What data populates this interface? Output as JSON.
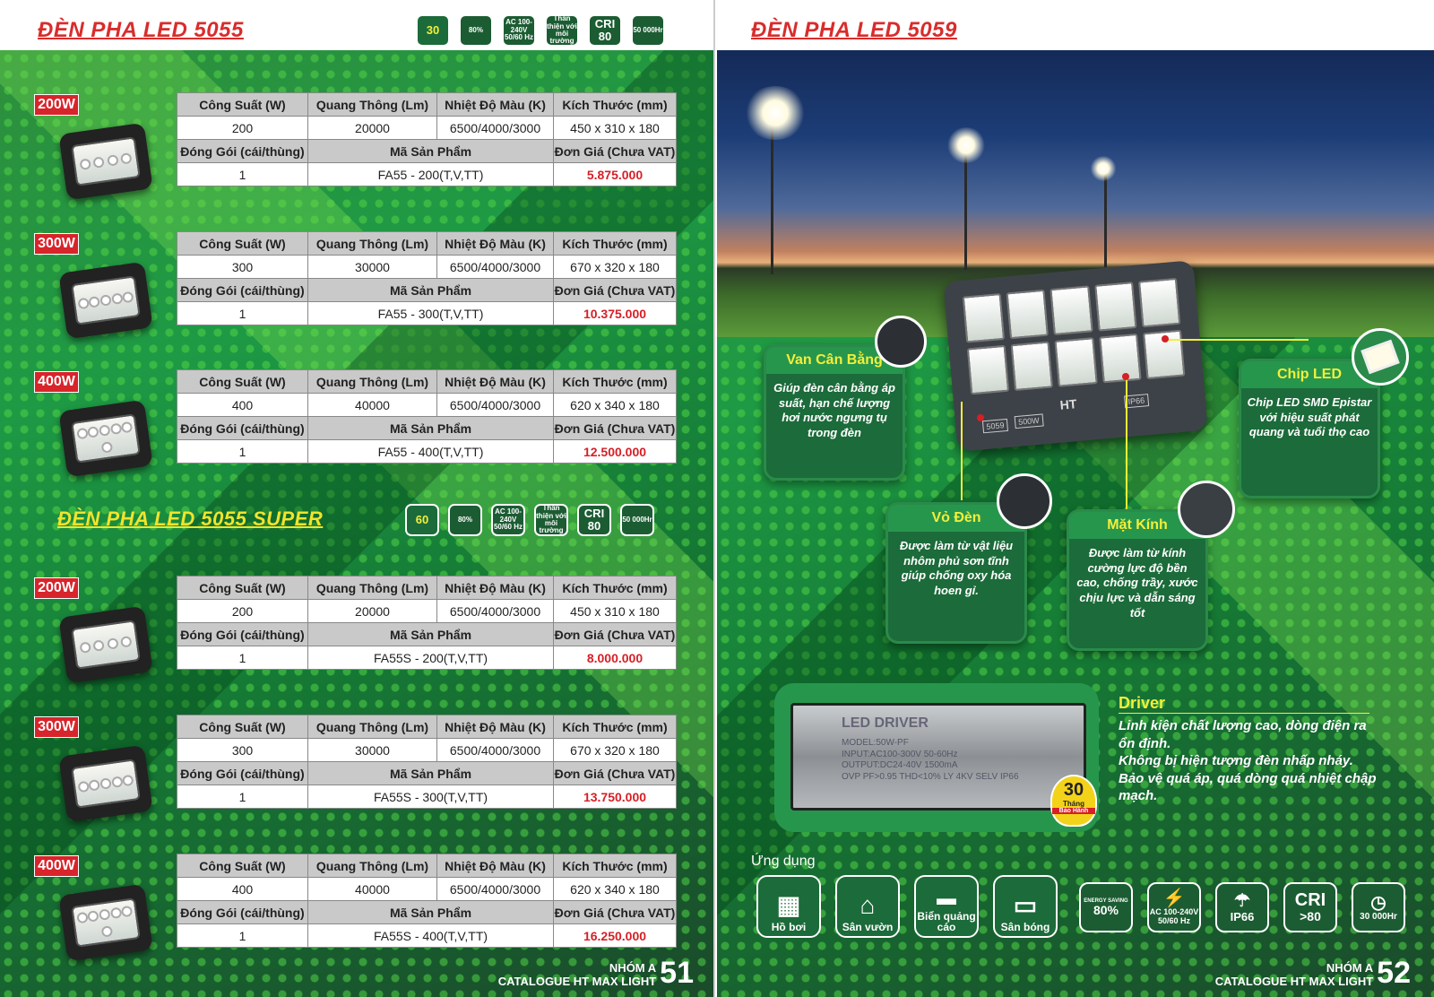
{
  "left_page": {
    "title": "ĐÈN PHA LED 5055",
    "badges": [
      {
        "icon": "warranty-30-icon",
        "label": "30"
      },
      {
        "icon": "energy-saving-icon",
        "label": "80%"
      },
      {
        "icon": "voltage-icon",
        "label": "AC 100-240V 50/60 Hz"
      },
      {
        "icon": "eco-friendly-icon",
        "label": "Thân thiện với môi trường"
      },
      {
        "icon": "cri-icon",
        "label": "CRI 80"
      },
      {
        "icon": "lifespan-icon",
        "label": "50 000Hr"
      }
    ],
    "super_title": "ĐÈN PHA LED 5055 SUPER",
    "super_badges": [
      {
        "icon": "warranty-60-icon",
        "label": "60"
      },
      {
        "icon": "energy-saving-icon",
        "label": "80%"
      },
      {
        "icon": "voltage-icon",
        "label": "AC 100-240V 50/60 Hz"
      },
      {
        "icon": "eco-friendly-icon",
        "label": "Thân thiện với môi trường"
      },
      {
        "icon": "cri-icon",
        "label": "CRI 80"
      },
      {
        "icon": "lifespan-icon",
        "label": "50 000Hr"
      }
    ],
    "headers": {
      "power": "Công Suất (W)",
      "lumen": "Quang Thông (Lm)",
      "temp": "Nhiệt Độ Màu (K)",
      "size": "Kích Thước (mm)",
      "pack": "Đóng Gói (cái/thùng)",
      "code": "Mã Sản Phẩm",
      "price": "Đơn Giá (Chưa VAT)"
    },
    "products": [
      {
        "watt": "200W",
        "power": "200",
        "lumen": "20000",
        "temp": "6500/4000/3000",
        "size": "450 x 310 x 180",
        "pack": "1",
        "code": "FA55 - 200(T,V,TT)",
        "price": "5.875.000"
      },
      {
        "watt": "300W",
        "power": "300",
        "lumen": "30000",
        "temp": "6500/4000/3000",
        "size": "670 x 320 x 180",
        "pack": "1",
        "code": "FA55 - 300(T,V,TT)",
        "price": "10.375.000"
      },
      {
        "watt": "400W",
        "power": "400",
        "lumen": "40000",
        "temp": "6500/4000/3000",
        "size": "620 x 340 x 180",
        "pack": "1",
        "code": "FA55 - 400(T,V,TT)",
        "price": "12.500.000"
      },
      {
        "watt": "200W",
        "power": "200",
        "lumen": "20000",
        "temp": "6500/4000/3000",
        "size": "450 x 310 x 180",
        "pack": "1",
        "code": "FA55S - 200(T,V,TT)",
        "price": "8.000.000"
      },
      {
        "watt": "300W",
        "power": "300",
        "lumen": "30000",
        "temp": "6500/4000/3000",
        "size": "670 x 320 x 180",
        "pack": "1",
        "code": "FA55S - 300(T,V,TT)",
        "price": "13.750.000"
      },
      {
        "watt": "400W",
        "power": "400",
        "lumen": "40000",
        "temp": "6500/4000/3000",
        "size": "620 x 340 x 180",
        "pack": "1",
        "code": "FA55S - 400(T,V,TT)",
        "price": "16.250.000"
      }
    ],
    "footer": {
      "group": "NHÓM A",
      "catalogue": "CATALOGUE HT MAX LIGHT",
      "page": "51"
    }
  },
  "right_page": {
    "title": "ĐÈN PHA LED 5059",
    "callouts": {
      "valve": {
        "title": "Van Cân Bằng",
        "text": "Giúp đèn cân bằng áp suất, hạn chế lượng hơi nước ngưng tụ trong đèn"
      },
      "chip": {
        "title": "Chip LED",
        "text": "Chip LED SMD Epistar với hiệu suất phát quang và tuổi thọ cao"
      },
      "shell": {
        "title": "Vỏ Đèn",
        "text": "Được làm từ vật liệu nhôm phủ sơn tĩnh giúp chống oxy hóa hoen gỉ."
      },
      "glass": {
        "title": "Mặt Kính",
        "text": "Được làm từ kính cường lực độ bền cao, chống trầy, xước chịu lực và dẫn sáng tốt"
      }
    },
    "hero_labels": {
      "brand": "HT",
      "model": "5059",
      "watt": "500W",
      "ip": "IP66"
    },
    "driver": {
      "title": "Driver",
      "lines": [
        "Linh kiện chất lượng cao, dòng điện ra ổn định.",
        "Không bị hiện tượng đèn nhấp nháy.",
        "Bảo vệ quá áp, quá dòng quá nhiệt chập mạch."
      ],
      "label": "LED DRIVER",
      "model": "MODEL:50W-PF",
      "input": "INPUT:AC100-300V 50-60Hz",
      "output": "OUTPUT:DC24-40V 1500mA",
      "ovp": "OVP  PF>0.95  THD<10%  LY 4KV  SELV  IP66",
      "warranty_num": "30",
      "warranty_unit": "Tháng",
      "warranty_text": "Bảo Hành"
    },
    "applications_label": "Ứng dụng",
    "applications": [
      {
        "icon": "pool-icon",
        "label": "Hồ bơi"
      },
      {
        "icon": "garden-icon",
        "label": "Sân vườn"
      },
      {
        "icon": "billboard-icon",
        "label": "Biển quảng cáo"
      },
      {
        "icon": "stadium-icon",
        "label": "Sân bóng"
      }
    ],
    "spec_badges": [
      {
        "icon": "energy-saving-icon",
        "big": "80%",
        "small": "ENERGY SAVING"
      },
      {
        "icon": "voltage-icon",
        "big": "⚡",
        "small": "AC 100-240V 50/60 Hz"
      },
      {
        "icon": "ip66-icon",
        "big": "☂",
        "small": "IP66"
      },
      {
        "icon": "cri-icon",
        "big": "CRI",
        "small": ">80"
      },
      {
        "icon": "lifespan-icon",
        "big": "◷",
        "small": "30 000Hr"
      }
    ],
    "footer": {
      "group": "NHÓM A",
      "catalogue": "CATALOGUE HT MAX LIGHT",
      "page": "52"
    }
  }
}
